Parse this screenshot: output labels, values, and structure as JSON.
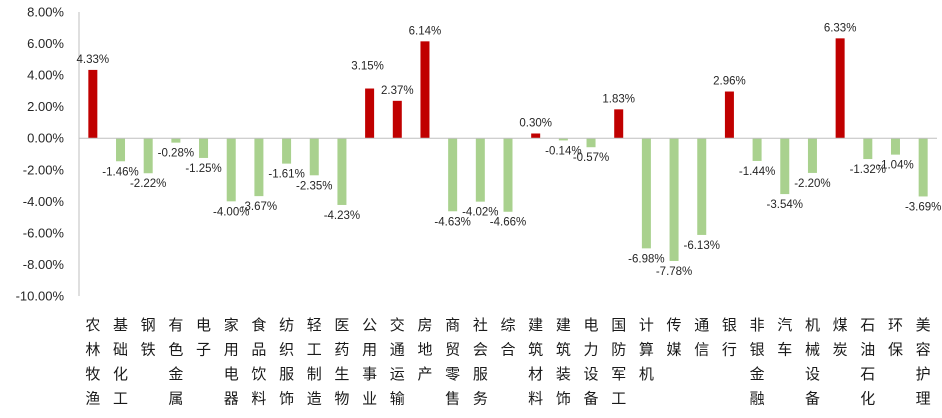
{
  "chart_data": {
    "type": "bar",
    "title": "",
    "xlabel": "",
    "ylabel": "",
    "ylim": [
      -10,
      8
    ],
    "y_ticks": [
      8,
      6,
      4,
      2,
      0,
      -2,
      -4,
      -6,
      -8,
      -10
    ],
    "y_tick_labels": [
      "8.00%",
      "6.00%",
      "4.00%",
      "2.00%",
      "0.00%",
      "-2.00%",
      "-4.00%",
      "-6.00%",
      "-8.00%",
      "-10.00%"
    ],
    "grid": false,
    "legend": "none",
    "colors": {
      "positive": "#c00000",
      "negative": "#a9d18e",
      "axis": "#bfbfbf"
    },
    "categories": [
      "农林牧渔",
      "基础化工",
      "钢铁",
      "有色金属",
      "电子",
      "家用电器",
      "食品饮料",
      "纺织服饰",
      "轻工制造",
      "医药生物",
      "公用事业",
      "交通运输",
      "房地产",
      "商贸零售",
      "社会服务",
      "综合",
      "建筑材料",
      "建筑装饰",
      "电力设备",
      "国防军工",
      "计算机",
      "传媒",
      "通信",
      "银行",
      "非银金融",
      "汽车",
      "机械设备",
      "煤炭",
      "石油石化",
      "环保",
      "美容护理"
    ],
    "values": [
      4.33,
      -1.46,
      -2.22,
      -0.28,
      -1.25,
      -4.0,
      -3.67,
      -1.61,
      -2.35,
      -4.23,
      3.15,
      2.37,
      6.14,
      -4.63,
      -4.02,
      -4.66,
      0.3,
      -0.14,
      -0.57,
      1.83,
      -6.98,
      -7.78,
      -6.13,
      2.96,
      -1.44,
      -3.54,
      -2.2,
      6.33,
      -1.32,
      -1.04,
      -3.69
    ],
    "data_labels": [
      "4.33%",
      "-1.46%",
      "-2.22%",
      "-0.28%",
      "-1.25%",
      "-4.00%",
      "-3.67%",
      "-1.61%",
      "-2.35%",
      "-4.23%",
      "3.15%",
      "2.37%",
      "6.14%",
      "-4.63%",
      "-4.02%",
      "-4.66%",
      "0.30%",
      "-0.14%",
      "-0.57%",
      "1.83%",
      "-6.98%",
      "-7.78%",
      "-6.13%",
      "2.96%",
      "-1.44%",
      "-3.54%",
      "-2.20%",
      "6.33%",
      "-1.32%",
      "-1.04%",
      "-3.69%"
    ]
  }
}
